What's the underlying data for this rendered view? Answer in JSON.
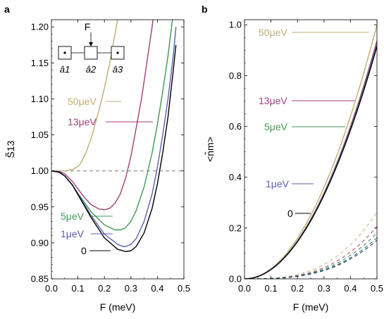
{
  "colors": {
    "50ueV": "#bfae73",
    "13ueV": "#a03f78",
    "5ueV": "#3d9a55",
    "1ueV": "#5a5fad",
    "0ueV": "#000000",
    "dashed_n3_0": "#1f3f5c",
    "dashed_n3_1": "#2f6d8a",
    "dashed_n3_5": "#3d9a55",
    "dashed_n3_13": "#c24a7d",
    "dashed_n3_50": "#c8b886",
    "reference": "#8a8a8a"
  },
  "chart_data": [
    {
      "panel": "a",
      "type": "line",
      "ylabel": "S̃13",
      "xlabel": "F (meV)",
      "xlim": [
        0.0,
        0.5
      ],
      "ylim": [
        0.85,
        1.21
      ],
      "xticks": [
        "0.0",
        "0.1",
        "0.2",
        "0.3",
        "0.4",
        "0.5"
      ],
      "yticks": [
        "0.85",
        "0.90",
        "0.95",
        "1.00",
        "1.05",
        "1.10",
        "1.15",
        "1.20"
      ],
      "reference_line": {
        "y": 1.0,
        "style": "dashed"
      },
      "inset": {
        "labels": [
          "F",
          "â1",
          "â2",
          "â3"
        ]
      },
      "series": [
        {
          "name": "50μeV",
          "label_prefix": "50",
          "color_key": "50ueV",
          "x": [
            0,
            0.02,
            0.05,
            0.08,
            0.1,
            0.11,
            0.13,
            0.15,
            0.18,
            0.2,
            0.22,
            0.24,
            0.25,
            0.26
          ],
          "y": [
            1.0,
            1.0,
            1.0,
            1.002,
            1.006,
            1.01,
            1.025,
            1.045,
            1.085,
            1.115,
            1.15,
            1.19,
            1.21,
            1.23
          ]
        },
        {
          "name": "13μeV",
          "label_prefix": "13",
          "color_key": "13ueV",
          "x": [
            0,
            0.03,
            0.05,
            0.08,
            0.1,
            0.12,
            0.15,
            0.18,
            0.2,
            0.22,
            0.24,
            0.26,
            0.28,
            0.3,
            0.32,
            0.34,
            0.36,
            0.38,
            0.39
          ],
          "y": [
            1.0,
            0.999,
            0.996,
            0.985,
            0.975,
            0.965,
            0.953,
            0.947,
            0.946,
            0.948,
            0.955,
            0.968,
            0.99,
            1.02,
            1.06,
            1.1,
            1.15,
            1.2,
            1.23
          ]
        },
        {
          "name": "5μeV",
          "label_prefix": "5",
          "color_key": "5ueV",
          "x": [
            0,
            0.03,
            0.05,
            0.08,
            0.1,
            0.15,
            0.2,
            0.24,
            0.26,
            0.28,
            0.3,
            0.32,
            0.35,
            0.38,
            0.4,
            0.42,
            0.44,
            0.46
          ],
          "y": [
            1.0,
            0.998,
            0.993,
            0.98,
            0.969,
            0.943,
            0.925,
            0.918,
            0.918,
            0.921,
            0.93,
            0.945,
            0.978,
            1.025,
            1.065,
            1.11,
            1.16,
            1.22
          ]
        },
        {
          "name": "1μeV",
          "label_prefix": "1",
          "color_key": "1ueV",
          "x": [
            0,
            0.03,
            0.05,
            0.08,
            0.1,
            0.15,
            0.2,
            0.25,
            0.27,
            0.28,
            0.3,
            0.32,
            0.35,
            0.38,
            0.4,
            0.42,
            0.44,
            0.46,
            0.47
          ],
          "y": [
            1.0,
            0.998,
            0.993,
            0.98,
            0.968,
            0.938,
            0.912,
            0.898,
            0.895,
            0.895,
            0.898,
            0.906,
            0.93,
            0.968,
            1.005,
            1.05,
            1.1,
            1.16,
            1.2
          ]
        },
        {
          "name": "0",
          "label_prefix": "0",
          "color_key": "0ueV",
          "x": [
            0,
            0.03,
            0.05,
            0.08,
            0.1,
            0.15,
            0.2,
            0.25,
            0.28,
            0.3,
            0.32,
            0.35,
            0.38,
            0.4,
            0.42,
            0.44,
            0.46,
            0.47
          ],
          "y": [
            1.0,
            0.998,
            0.993,
            0.98,
            0.967,
            0.935,
            0.907,
            0.891,
            0.888,
            0.889,
            0.895,
            0.914,
            0.948,
            0.982,
            1.025,
            1.075,
            1.14,
            1.175
          ]
        }
      ]
    },
    {
      "panel": "b",
      "type": "line",
      "ylabel": "<n̂m>",
      "xlabel": "F (meV)",
      "xlim": [
        0.0,
        0.5
      ],
      "ylim": [
        0.0,
        1.02
      ],
      "xticks": [
        "0.0",
        "0.1",
        "0.2",
        "0.3",
        "0.4",
        "0.5"
      ],
      "yticks": [
        "0.0",
        "0.2",
        "0.4",
        "0.6",
        "0.8",
        "1.0"
      ],
      "series": [
        {
          "name": "50μeV",
          "label_prefix": "50",
          "color_key": "50ueV",
          "style": "solid",
          "form": "power",
          "coef": 4.0,
          "exponent": 2.0
        },
        {
          "name": "13μeV",
          "label_prefix": "13",
          "color_key": "13ueV",
          "style": "solid",
          "form": "power",
          "coef": 3.75,
          "exponent": 2.0
        },
        {
          "name": "5μeV",
          "label_prefix": "5",
          "color_key": "5ueV",
          "style": "solid",
          "form": "power",
          "coef": 3.7,
          "exponent": 2.0
        },
        {
          "name": "1μeV",
          "label_prefix": "1",
          "color_key": "1ueV",
          "style": "solid",
          "form": "power",
          "coef": 3.68,
          "exponent": 2.0
        },
        {
          "name": "0",
          "label_prefix": "0",
          "color_key": "0ueV",
          "style": "solid",
          "form": "power",
          "coef": 3.66,
          "exponent": 2.0
        },
        {
          "name": "",
          "color_key": "dashed_n3_50",
          "style": "dashed",
          "form": "power",
          "coef": 2.1,
          "exponent": 3.0
        },
        {
          "name": "",
          "color_key": "dashed_n3_13",
          "style": "dashed",
          "form": "power",
          "coef": 1.65,
          "exponent": 3.0
        },
        {
          "name": "",
          "color_key": "dashed_n3_5",
          "style": "dashed",
          "form": "power",
          "coef": 1.45,
          "exponent": 3.0
        },
        {
          "name": "",
          "color_key": "dashed_n3_1",
          "style": "dashed",
          "form": "power",
          "coef": 1.3,
          "exponent": 3.0
        },
        {
          "name": "",
          "color_key": "dashed_n3_0",
          "style": "dashed",
          "form": "power",
          "coef": 1.22,
          "exponent": 3.0
        }
      ]
    }
  ],
  "panel_labels": {
    "a": "a",
    "b": "b"
  },
  "unit_suffix": "eV",
  "mu_symbol": "μ"
}
